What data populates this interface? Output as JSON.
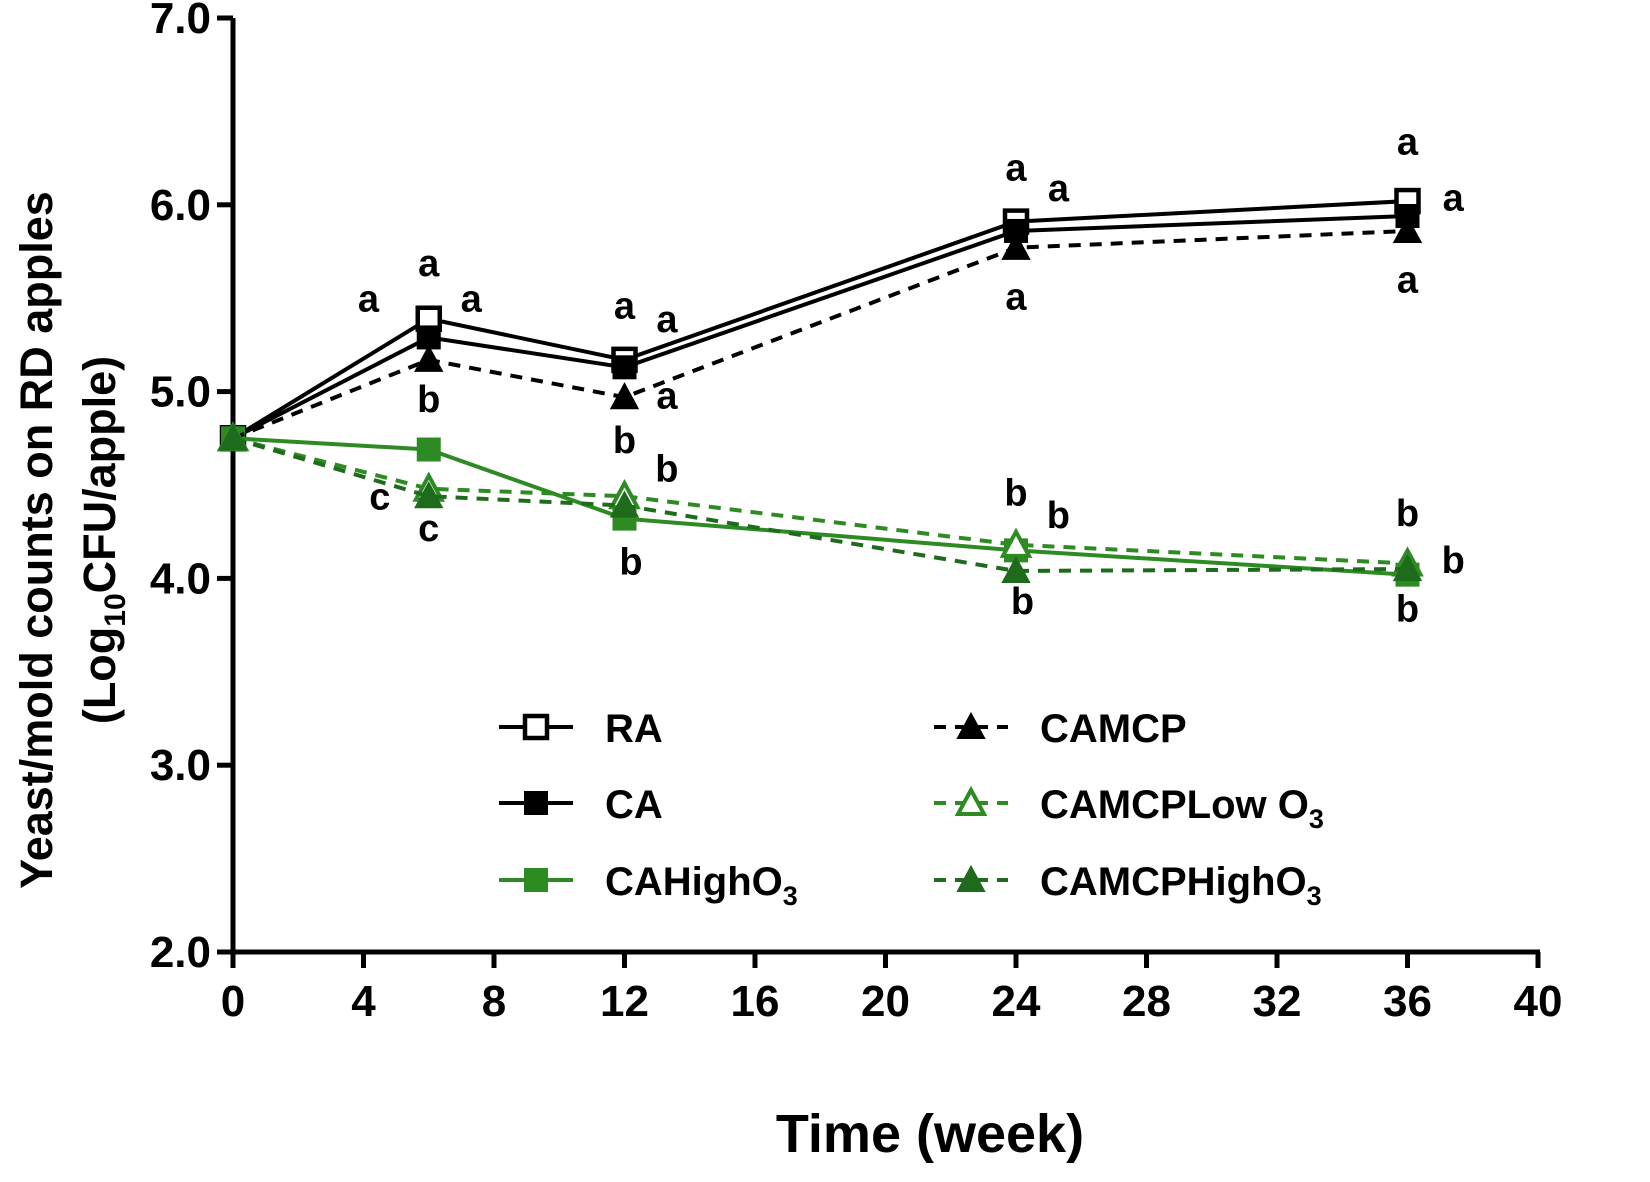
{
  "chart_data": {
    "type": "line",
    "title": "",
    "xlabel": "Time (week)",
    "ylabel_line1": "Yeast/mold counts on RD apples",
    "ylabel_line2": {
      "pre": "(Log",
      "sub": "10",
      "post": "CFU/apple)"
    },
    "xlim": [
      0,
      40
    ],
    "ylim": [
      2.0,
      7.0
    ],
    "x_ticks": [
      0,
      4,
      8,
      12,
      16,
      20,
      24,
      28,
      32,
      36,
      40
    ],
    "x_tick_labels": [
      "0",
      "4",
      "8",
      "12",
      "16",
      "20",
      "24",
      "28",
      "32",
      "36",
      "40"
    ],
    "y_ticks": [
      2.0,
      3.0,
      4.0,
      5.0,
      6.0,
      7.0
    ],
    "y_tick_labels": [
      "2.0",
      "3.0",
      "4.0",
      "5.0",
      "6.0",
      "7.0"
    ],
    "x": [
      0,
      6,
      12,
      24,
      36
    ],
    "legend_position": "lower-center",
    "series": [
      {
        "name": "RA",
        "legend_label": {
          "pre": "RA",
          "sub": ""
        },
        "values": [
          4.75,
          5.39,
          5.17,
          5.91,
          6.02
        ],
        "color": "#000000",
        "dash": "solid",
        "marker": "square-open"
      },
      {
        "name": "CA",
        "legend_label": {
          "pre": "CA",
          "sub": ""
        },
        "values": [
          4.75,
          5.29,
          5.13,
          5.86,
          5.94
        ],
        "color": "#000000",
        "dash": "solid",
        "marker": "square"
      },
      {
        "name": "CAHighO3",
        "legend_label": {
          "pre": "CAHighO",
          "sub": "3"
        },
        "values": [
          4.75,
          4.69,
          4.32,
          4.15,
          4.02
        ],
        "color": "#2e8b24",
        "dash": "solid",
        "marker": "square"
      },
      {
        "name": "CAMCP",
        "legend_label": {
          "pre": "CAMCP",
          "sub": ""
        },
        "values": [
          4.75,
          5.17,
          4.97,
          5.77,
          5.86
        ],
        "color": "#000000",
        "dash": "dashed",
        "marker": "triangle"
      },
      {
        "name": "CAMCPLow O3",
        "legend_label": {
          "pre": "CAMCPLow O",
          "sub": "3"
        },
        "values": [
          4.75,
          4.48,
          4.44,
          4.18,
          4.08
        ],
        "color": "#2e8b24",
        "dash": "dashed",
        "marker": "triangle-open"
      },
      {
        "name": "CAMCPHighO3",
        "legend_label": {
          "pre": "CAMCPHighO",
          "sub": "3"
        },
        "values": [
          4.75,
          4.44,
          4.39,
          4.04,
          4.05
        ],
        "color": "#1d6b1b",
        "dash": "dashed",
        "marker": "triangle"
      }
    ],
    "annotations": [
      {
        "text": "a",
        "x": 6,
        "y": 5.62
      },
      {
        "text": "a",
        "x": 4.15,
        "y": 5.43
      },
      {
        "text": "a",
        "x": 7.3,
        "y": 5.43
      },
      {
        "text": "a",
        "x": 12,
        "y": 5.39
      },
      {
        "text": "a",
        "x": 13.3,
        "y": 5.32
      },
      {
        "text": "a",
        "x": 13.3,
        "y": 4.91
      },
      {
        "text": "b",
        "x": 6,
        "y": 4.89
      },
      {
        "text": "c",
        "x": 4.5,
        "y": 4.37
      },
      {
        "text": "c",
        "x": 6,
        "y": 4.2
      },
      {
        "text": "b",
        "x": 12,
        "y": 4.67
      },
      {
        "text": "b",
        "x": 13.3,
        "y": 4.52
      },
      {
        "text": "b",
        "x": 12.2,
        "y": 4.02
      },
      {
        "text": "a",
        "x": 24,
        "y": 6.13
      },
      {
        "text": "a",
        "x": 25.3,
        "y": 6.02
      },
      {
        "text": "a",
        "x": 24,
        "y": 5.44
      },
      {
        "text": "b",
        "x": 24,
        "y": 4.39
      },
      {
        "text": "b",
        "x": 25.3,
        "y": 4.27
      },
      {
        "text": "b",
        "x": 24.2,
        "y": 3.81
      },
      {
        "text": "a",
        "x": 36,
        "y": 6.27
      },
      {
        "text": "a",
        "x": 37.4,
        "y": 5.97
      },
      {
        "text": "a",
        "x": 36,
        "y": 5.53
      },
      {
        "text": "b",
        "x": 36,
        "y": 4.28
      },
      {
        "text": "b",
        "x": 37.4,
        "y": 4.03
      },
      {
        "text": "b",
        "x": 36,
        "y": 3.77
      }
    ]
  }
}
